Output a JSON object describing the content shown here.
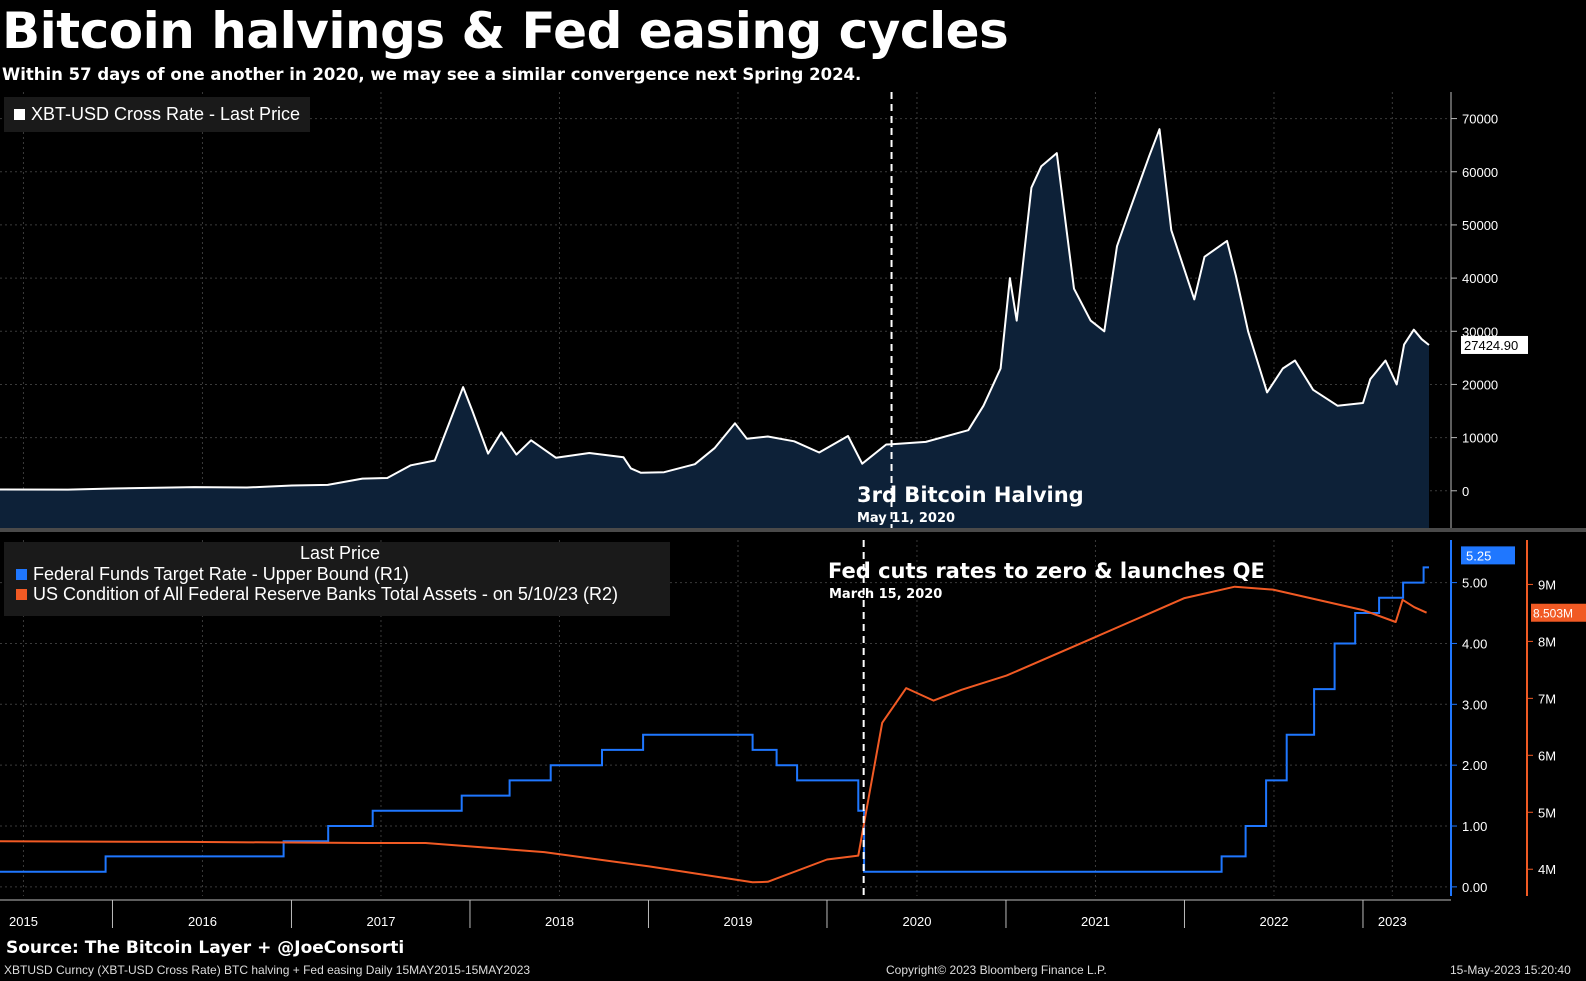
{
  "title": "Bitcoin halvings & Fed easing cycles",
  "subtitle": "Within 57 days of one another in 2020, we may see a similar convergence next Spring 2024.",
  "colors": {
    "btc_line": "#ffffff",
    "btc_fill": "#0d2138",
    "fed_rate": "#1f77ff",
    "fed_assets": "#f15a24",
    "grid": "#3a3a3a",
    "legend_bg": "#1a1a1a"
  },
  "annotations": {
    "halving_label": "3rd Bitcoin Halving",
    "halving_date": "May 11, 2020",
    "fed_label": "Fed cuts rates to zero & launches QE",
    "fed_date": "March 15, 2020"
  },
  "footer": {
    "source": "Source: The Bitcoin Layer + @JoeConsorti",
    "ticker": "XBTUSD Curncy (XBT-USD Cross Rate) BTC halving + Fed easing  Daily 15MAY2015-15MAY2023",
    "copyright": "Copyright© 2023 Bloomberg Finance L.P.",
    "timestamp": "15-May-2023 15:20:40"
  },
  "chart_data": [
    {
      "type": "area",
      "legend": [
        "XBT-USD Cross Rate - Last Price"
      ],
      "last_value_label": "27424.90",
      "ylim": [
        -7000,
        75000
      ],
      "yticks": [
        0,
        10000,
        20000,
        30000,
        40000,
        50000,
        60000,
        70000
      ],
      "ytick_labels": [
        "0",
        "10000",
        "20000",
        "30000",
        "40000",
        "50000",
        "60000",
        "70000"
      ],
      "series": [
        {
          "name": "XBT-USD Cross Rate - Last Price",
          "x": [
            "2015-05-15",
            "2015-10-01",
            "2016-01-01",
            "2016-06-15",
            "2016-10-01",
            "2017-01-01",
            "2017-03-15",
            "2017-05-25",
            "2017-07-15",
            "2017-09-01",
            "2017-10-20",
            "2017-12-17",
            "2018-01-05",
            "2018-02-06",
            "2018-03-05",
            "2018-04-05",
            "2018-05-05",
            "2018-06-25",
            "2018-09-01",
            "2018-11-10",
            "2018-11-25",
            "2018-12-15",
            "2019-02-01",
            "2019-04-05",
            "2019-05-15",
            "2019-06-26",
            "2019-07-20",
            "2019-09-01",
            "2019-10-25",
            "2019-12-15",
            "2020-02-12",
            "2020-03-12",
            "2020-04-30",
            "2020-05-11",
            "2020-07-20",
            "2020-10-15",
            "2020-11-15",
            "2020-12-20",
            "2021-01-08",
            "2021-01-22",
            "2021-02-21",
            "2021-03-13",
            "2021-04-14",
            "2021-05-19",
            "2021-06-22",
            "2021-07-20",
            "2021-08-15",
            "2021-09-07",
            "2021-10-20",
            "2021-11-10",
            "2021-12-04",
            "2022-01-20",
            "2022-02-10",
            "2022-03-28",
            "2022-04-15",
            "2022-05-10",
            "2022-06-18",
            "2022-07-20",
            "2022-08-14",
            "2022-09-20",
            "2022-11-09",
            "2022-12-31",
            "2023-01-15",
            "2023-02-15",
            "2023-03-10",
            "2023-03-25",
            "2023-04-14",
            "2023-04-30",
            "2023-05-15"
          ],
          "values": [
            240,
            230,
            430,
            700,
            620,
            1000,
            1100,
            2300,
            2400,
            4800,
            5700,
            19500,
            15000,
            7000,
            11000,
            6800,
            9500,
            6200,
            7100,
            6300,
            4200,
            3400,
            3500,
            5000,
            8000,
            12700,
            9800,
            10200,
            9300,
            7200,
            10300,
            5100,
            8700,
            8750,
            9200,
            11400,
            16000,
            23000,
            40000,
            32000,
            57000,
            61000,
            63500,
            38000,
            32000,
            30000,
            46000,
            52000,
            63000,
            68000,
            49000,
            36000,
            44000,
            47000,
            40500,
            30000,
            18500,
            23000,
            24500,
            19000,
            16000,
            16500,
            21000,
            24500,
            20000,
            27500,
            30300,
            28500,
            27424.9
          ]
        }
      ]
    },
    {
      "type": "line",
      "legend_header": "Last Price",
      "legend": [
        "Federal Funds Target Rate - Upper Bound  (R1)",
        "US Condition of All Federal Reserve Banks Total Assets -  on 5/10/23  (R2)"
      ],
      "last_value_labels": [
        "5.25",
        "8.503M"
      ],
      "ylim_left_rate": [
        -0.15,
        5.7
      ],
      "yticks_rate": [
        "0.00",
        "1.00",
        "2.00",
        "3.00",
        "4.00",
        "5.00"
      ],
      "ylim_right_assets_millions": [
        3.53,
        9.78
      ],
      "yticks_assets": [
        "4M",
        "5M",
        "6M",
        "7M",
        "8M",
        "9M"
      ],
      "series": [
        {
          "name": "Federal Funds Target Rate - Upper Bound  (R1)",
          "step": true,
          "x": [
            "2015-05-15",
            "2015-12-17",
            "2016-12-15",
            "2017-03-16",
            "2017-06-15",
            "2017-12-14",
            "2018-03-22",
            "2018-06-14",
            "2018-09-27",
            "2018-12-20",
            "2019-08-01",
            "2019-09-19",
            "2019-10-31",
            "2020-03-04",
            "2020-03-16",
            "2022-03-17",
            "2022-05-05",
            "2022-06-16",
            "2022-07-28",
            "2022-09-22",
            "2022-11-03",
            "2022-12-15",
            "2023-02-02",
            "2023-03-23",
            "2023-05-04",
            "2023-05-15"
          ],
          "values": [
            0.25,
            0.5,
            0.75,
            1.0,
            1.25,
            1.5,
            1.75,
            2.0,
            2.25,
            2.5,
            2.25,
            2.0,
            1.75,
            1.25,
            0.25,
            0.5,
            1.0,
            1.75,
            2.5,
            3.25,
            4.0,
            4.5,
            4.75,
            5.0,
            5.25,
            5.25
          ]
        },
        {
          "name": "US Condition of All Federal Reserve Banks Total Assets -  on 5/10/23  (R2)",
          "x": [
            "2015-05-15",
            "2016-06-01",
            "2017-06-01",
            "2017-10-01",
            "2018-06-01",
            "2019-01-01",
            "2019-08-01",
            "2019-09-01",
            "2019-12-31",
            "2020-03-04",
            "2020-03-25",
            "2020-04-22",
            "2020-06-10",
            "2020-08-05",
            "2020-10-01",
            "2021-01-01",
            "2021-06-30",
            "2021-12-31",
            "2022-04-13",
            "2022-06-30",
            "2022-12-31",
            "2023-03-08",
            "2023-03-22",
            "2023-04-15",
            "2023-05-10"
          ],
          "values": [
            4.49,
            4.48,
            4.46,
            4.46,
            4.3,
            4.05,
            3.77,
            3.78,
            4.17,
            4.24,
            5.25,
            6.57,
            7.18,
            6.96,
            7.15,
            7.4,
            8.07,
            8.76,
            8.96,
            8.91,
            8.55,
            8.34,
            8.73,
            8.6,
            8.503
          ]
        }
      ]
    }
  ],
  "x_axis": {
    "labels": [
      "2015",
      "2016",
      "2017",
      "2018",
      "2019",
      "2020",
      "2021",
      "2022",
      "2023"
    ],
    "label_dates": [
      "2015-07-02",
      "2016-07-02",
      "2017-07-02",
      "2018-07-02",
      "2019-07-02",
      "2020-07-02",
      "2021-07-02",
      "2022-07-02",
      "2023-03-01"
    ],
    "year_boundaries": [
      "2015-12-31",
      "2016-12-31",
      "2017-12-31",
      "2018-12-31",
      "2019-12-31",
      "2020-12-31",
      "2021-12-31",
      "2022-12-31"
    ],
    "halving_date": "2020-05-11",
    "fed_cut_date": "2020-03-15"
  }
}
